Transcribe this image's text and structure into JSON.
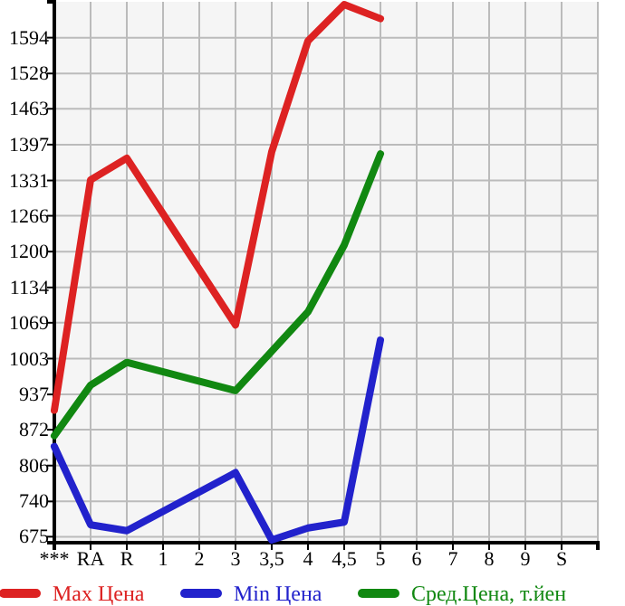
{
  "chart_data": {
    "type": "line",
    "categories": [
      "***",
      "RA",
      "R",
      "1",
      "2",
      "3",
      "3,5",
      "4",
      "4,5",
      "5",
      "6",
      "7",
      "8",
      "9",
      "S"
    ],
    "series": [
      {
        "name": "Max Цена",
        "color": "#dd2222",
        "values": [
          908,
          1332,
          1372,
          null,
          null,
          1065,
          1384,
          1588,
          1655,
          1629,
          null,
          null,
          null,
          null,
          null
        ]
      },
      {
        "name": "Min Цена",
        "color": "#2222cc",
        "values": [
          841,
          697,
          686,
          null,
          null,
          793,
          669,
          691,
          702,
          1037,
          null,
          null,
          null,
          null,
          null
        ]
      },
      {
        "name": "Сред.Цена, т.йен",
        "color": "#118811",
        "values": [
          861,
          954,
          996,
          null,
          null,
          944,
          null,
          1089,
          1212,
          1380,
          null,
          null,
          null,
          null,
          null
        ]
      }
    ],
    "ylim": [
      664,
      1660
    ],
    "yticks": [
      675,
      740,
      806,
      872,
      937,
      1003,
      1069,
      1134,
      1200,
      1266,
      1331,
      1397,
      1463,
      1528,
      1594
    ],
    "grid": true,
    "legend": "bottom",
    "marker": "none",
    "line_style": "solid"
  }
}
